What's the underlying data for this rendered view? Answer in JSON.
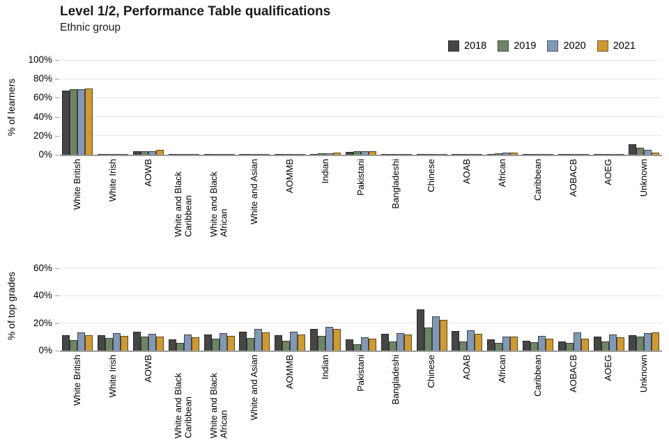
{
  "header": {
    "title": "Level 1/2, Performance Table qualifications",
    "subtitle": "Ethnic group"
  },
  "legend": {
    "items": [
      "2018",
      "2019",
      "2020",
      "2021"
    ]
  },
  "colors": {
    "2018": "#464646",
    "2019": "#6e8565",
    "2020": "#8298b4",
    "2021": "#cd9a33",
    "axis": "#9a9a9a",
    "gridline": "#e4e4e4"
  },
  "chart_data": [
    {
      "type": "bar",
      "ylabel": "% of learners",
      "ylim": [
        0,
        100
      ],
      "yticks": [
        0,
        20,
        40,
        60,
        80,
        100
      ],
      "grid": true,
      "legend_position": "top-right",
      "categories": [
        "White British",
        "White Irish",
        "AOWB",
        "White and Black Caribbean",
        "White and Black African",
        "White and Asian",
        "AOMMB",
        "Indian",
        "Pakistani",
        "Bangladeshi",
        "Chinese",
        "AOAB",
        "African",
        "Caribbean",
        "AOBACB",
        "AOEG",
        "Unknown"
      ],
      "series": [
        {
          "name": "2018",
          "values": [
            68,
            0.3,
            4,
            1,
            0.5,
            1,
            1,
            1,
            3,
            1,
            0.3,
            0.5,
            1,
            0.5,
            0.2,
            0.5,
            11
          ]
        },
        {
          "name": "2019",
          "values": [
            69,
            0.3,
            4,
            1,
            0.5,
            1,
            1,
            1.5,
            4,
            1,
            0.3,
            0.5,
            1.5,
            0.5,
            0.2,
            0.5,
            7
          ]
        },
        {
          "name": "2020",
          "values": [
            69,
            0.3,
            4,
            1,
            0.5,
            1,
            1,
            1.5,
            4,
            1,
            0.3,
            0.5,
            2,
            0.5,
            0.2,
            0.5,
            5
          ]
        },
        {
          "name": "2021",
          "values": [
            70,
            0.3,
            5,
            1,
            0.5,
            1,
            1,
            2,
            4,
            1,
            0.3,
            1,
            2.5,
            1,
            0.2,
            1,
            2.5
          ]
        }
      ]
    },
    {
      "type": "bar",
      "ylabel": "% of top grades",
      "ylim": [
        0,
        65
      ],
      "yticks": [
        0,
        20,
        40,
        60
      ],
      "grid": true,
      "categories": [
        "White British",
        "White Irish",
        "AOWB",
        "White and Black Caribbean",
        "White and Black African",
        "White and Asian",
        "AOMMB",
        "Indian",
        "Pakistani",
        "Bangladeshi",
        "Chinese",
        "AOAB",
        "African",
        "Caribbean",
        "AOBACB",
        "AOEG",
        "Unknown"
      ],
      "series": [
        {
          "name": "2018",
          "values": [
            11,
            11,
            13.5,
            8,
            11.5,
            13.5,
            11,
            15.5,
            8,
            12,
            30,
            14,
            8,
            7,
            6.5,
            10,
            11
          ]
        },
        {
          "name": "2019",
          "values": [
            7.5,
            9,
            10,
            5.5,
            8.5,
            9,
            7,
            10.5,
            4.5,
            6.5,
            17,
            6.5,
            5.5,
            6,
            5.5,
            6.5,
            10
          ]
        },
        {
          "name": "2020",
          "values": [
            13,
            12.5,
            12,
            11.5,
            12.5,
            15.5,
            13.5,
            17.5,
            9.5,
            12.5,
            25,
            14.5,
            10,
            10.5,
            13,
            11.5,
            12.5
          ]
        },
        {
          "name": "2021",
          "values": [
            11,
            10.5,
            10,
            9.5,
            10.5,
            13,
            11.5,
            16,
            8.5,
            11.5,
            22.5,
            12,
            10,
            8.5,
            8.5,
            9.5,
            13
          ]
        }
      ]
    }
  ]
}
